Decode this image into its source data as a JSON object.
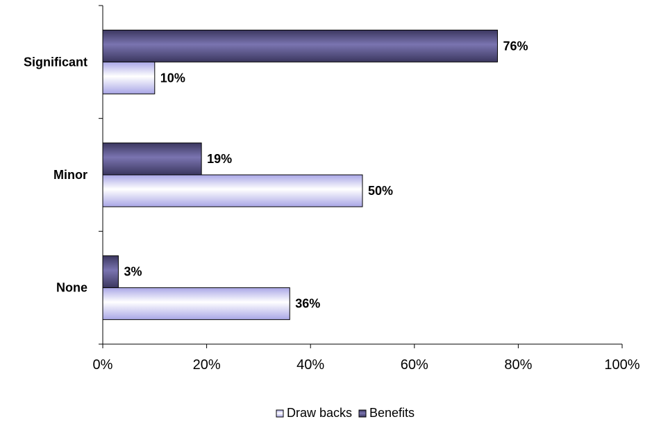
{
  "chart_data": {
    "type": "bar",
    "orientation": "horizontal",
    "categories": [
      "Significant",
      "Minor",
      "None"
    ],
    "series": [
      {
        "name": "Benefits",
        "values": [
          76,
          19,
          3
        ],
        "labels": [
          "76%",
          "19%",
          "3%"
        ],
        "color": "#4f4a7a"
      },
      {
        "name": "Draw backs",
        "values": [
          10,
          50,
          36
        ],
        "labels": [
          "10%",
          "50%",
          "36%"
        ],
        "color": "#c8c6f0"
      }
    ],
    "xlim": [
      0,
      100
    ],
    "x_ticks": [
      0,
      20,
      40,
      60,
      80,
      100
    ],
    "x_tick_labels": [
      "0%",
      "20%",
      "40%",
      "60%",
      "80%",
      "100%"
    ],
    "legend": {
      "position": "bottom",
      "entries": [
        "Draw backs",
        "Benefits"
      ]
    },
    "grid": false
  }
}
